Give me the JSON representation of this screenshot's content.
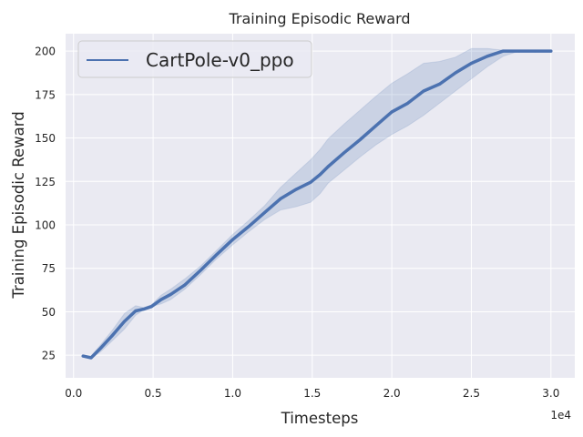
{
  "chart_data": {
    "type": "line",
    "title": "Training Episodic Reward",
    "xlabel": "Timesteps",
    "ylabel": "Training Episodic Reward",
    "x_offset_label": "1e4",
    "x_scale_factor": 10000,
    "xlim": [
      -500,
      31500
    ],
    "ylim": [
      12,
      210
    ],
    "x_ticks": [
      0,
      5000,
      10000,
      15000,
      20000,
      25000,
      30000
    ],
    "x_tick_labels": [
      "0.0",
      "0.5",
      "1.0",
      "1.5",
      "2.0",
      "2.5",
      "3.0"
    ],
    "y_ticks": [
      25,
      50,
      75,
      100,
      125,
      150,
      175,
      200
    ],
    "y_tick_labels": [
      "25",
      "50",
      "75",
      "100",
      "125",
      "150",
      "175",
      "200"
    ],
    "grid": true,
    "legend_position": "top-left",
    "background_color": "#eaeaf2",
    "grid_color": "#ffffff",
    "series": [
      {
        "name": "CartPole-v0_ppo",
        "color": "#4c72b0",
        "x": [
          600,
          1100,
          1700,
          2400,
          3200,
          3900,
          4400,
          4900,
          5500,
          6100,
          7000,
          8000,
          9000,
          10000,
          11000,
          12000,
          13000,
          14000,
          14900,
          15500,
          16000,
          17000,
          18000,
          19000,
          20000,
          21000,
          22000,
          23000,
          24000,
          25000,
          26000,
          27000,
          28000,
          29000,
          30000
        ],
        "y": [
          24.5,
          23.5,
          29,
          36,
          44.5,
          50.5,
          51.5,
          53,
          57,
          60,
          65.5,
          74,
          83,
          91.5,
          99,
          107,
          115,
          120.5,
          124.5,
          129,
          133.5,
          141.5,
          149,
          157,
          165,
          170,
          177,
          181,
          187.5,
          193,
          197,
          200,
          200,
          200,
          200
        ],
        "lower": [
          24.5,
          23,
          27,
          33,
          40,
          48,
          51,
          53,
          54.5,
          57,
          63,
          71.5,
          80.5,
          88.5,
          96,
          103,
          108.5,
          110.5,
          113,
          118,
          124,
          131.5,
          139,
          146,
          152,
          157,
          163,
          170,
          177,
          184,
          191,
          197,
          200,
          200,
          200
        ],
        "upper": [
          25,
          24.5,
          31,
          39,
          49,
          53.5,
          52.5,
          54,
          59.5,
          63,
          69,
          76.5,
          85.5,
          94.5,
          102.5,
          111,
          121.5,
          130,
          137.5,
          143.5,
          149.5,
          158,
          166,
          174,
          181.5,
          187,
          193,
          194,
          196.5,
          201.5,
          201.5,
          200.5,
          200,
          200,
          200
        ]
      }
    ]
  }
}
